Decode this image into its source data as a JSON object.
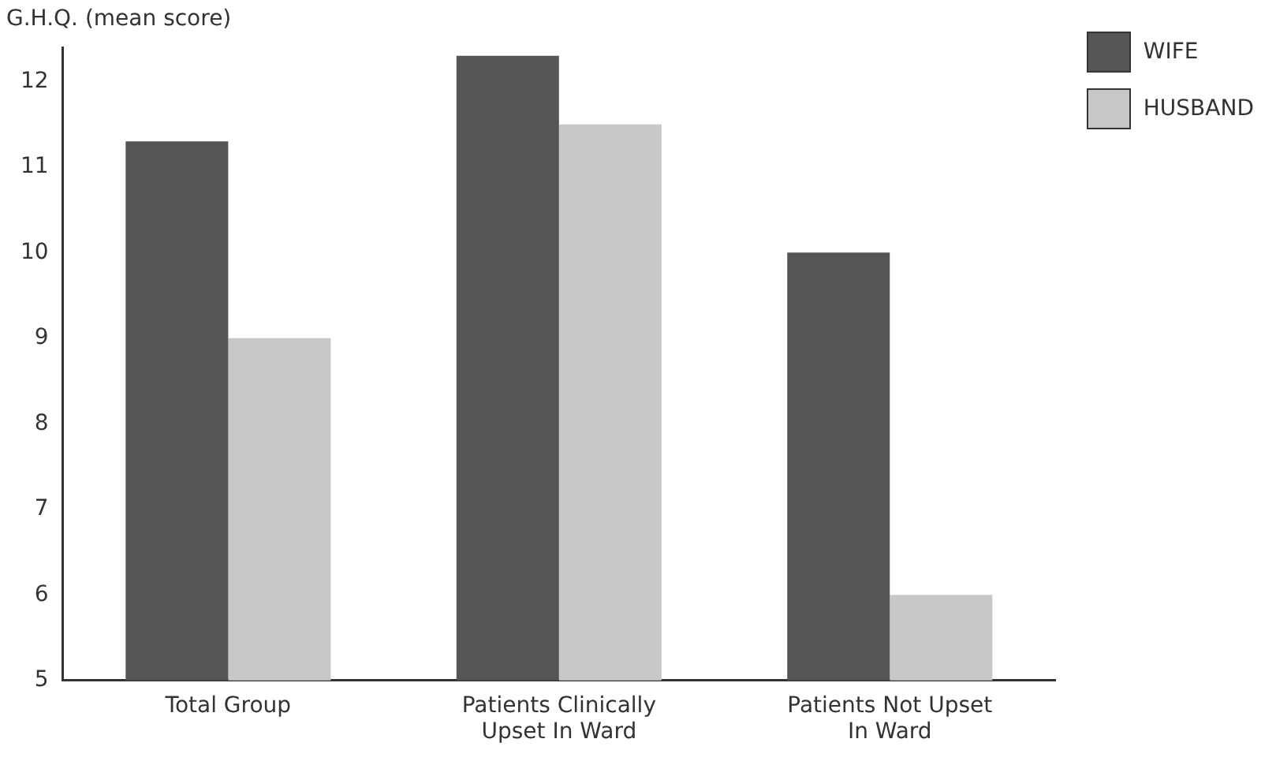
{
  "chart_data": {
    "type": "bar",
    "ylabel": "G.H.Q. (mean score)",
    "categories": [
      "Total Group",
      "Patients Clinically Upset In Ward",
      "Patients Not Upset In Ward"
    ],
    "series": [
      {
        "name": "WIFE",
        "color": "#555555",
        "values": [
          11.3,
          12.3,
          10.0
        ]
      },
      {
        "name": "HUSBAND",
        "color": "#c8c8c8",
        "values": [
          9.0,
          11.5,
          6.0
        ]
      }
    ],
    "ylim": [
      5,
      12.4
    ],
    "yticks": [
      5,
      6,
      7,
      8,
      9,
      10,
      11,
      12
    ],
    "grid": false,
    "legend": "top right"
  }
}
